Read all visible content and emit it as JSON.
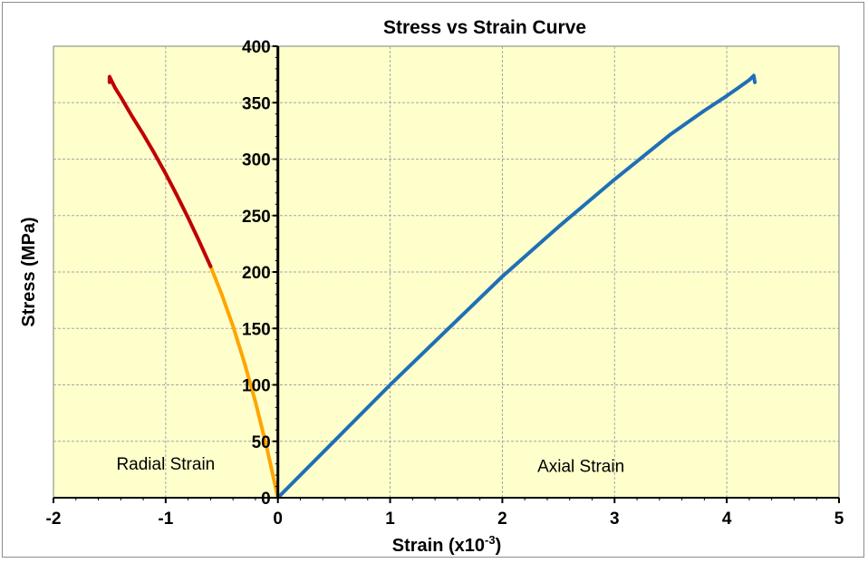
{
  "chart_data": {
    "type": "line",
    "title": "Stress vs Strain Curve",
    "xlabel_base": "Strain (x10",
    "xlabel_exp": "-3",
    "xlabel_end": ")",
    "ylabel": "Stress (MPa)",
    "xlim": [
      -2,
      5
    ],
    "ylim": [
      0,
      400
    ],
    "x_ticks": [
      -2,
      -1,
      0,
      1,
      2,
      3,
      4,
      5
    ],
    "y_ticks": [
      0,
      50,
      100,
      150,
      200,
      250,
      300,
      350,
      400
    ],
    "grid": true,
    "plot_background": "#ffffcc",
    "annotations": [
      {
        "text": "Radial Strain",
        "x": -1.0,
        "y": 25
      },
      {
        "text": "Axial Strain",
        "x": 2.7,
        "y": 23
      }
    ],
    "series": [
      {
        "color": "#1f6fb5",
        "x": [
          0,
          0.5,
          1.0,
          1.5,
          2.0,
          2.5,
          3.0,
          3.5,
          3.8,
          4.0,
          4.1,
          4.2,
          4.24,
          4.25
        ],
        "y": [
          0,
          50,
          100,
          148,
          196,
          240,
          282,
          322,
          343,
          356,
          363,
          370,
          374,
          368
        ]
      },
      {
        "color": "#ffa500",
        "x": [
          0,
          -0.1,
          -0.2,
          -0.3,
          -0.4,
          -0.5,
          -0.6
        ],
        "y": [
          0,
          45,
          85,
          120,
          152,
          180,
          205
        ]
      },
      {
        "color": "#c00000",
        "x": [
          -0.6,
          -0.7,
          -0.8,
          -0.9,
          -1.0,
          -1.1,
          -1.2,
          -1.3,
          -1.4,
          -1.45,
          -1.5,
          -1.5
        ],
        "y": [
          205,
          227,
          248,
          268,
          287,
          305,
          322,
          338,
          355,
          363,
          373,
          368
        ]
      }
    ]
  }
}
